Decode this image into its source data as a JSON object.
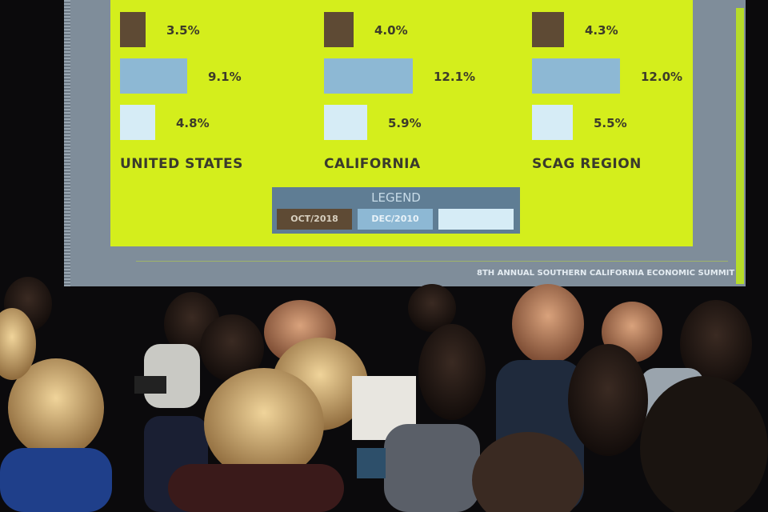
{
  "slide": {
    "groups": [
      {
        "region": "UNITED STATES",
        "values": [
          "3.5%",
          "9.1%",
          "4.8%"
        ],
        "nums": [
          3.5,
          9.1,
          4.8
        ]
      },
      {
        "region": "CALIFORNIA",
        "values": [
          "4.0%",
          "12.1%",
          "5.9%"
        ],
        "nums": [
          4.0,
          12.1,
          5.9
        ]
      },
      {
        "region": "SCAG REGION",
        "values": [
          "4.3%",
          "12.0%",
          "5.5%"
        ],
        "nums": [
          4.3,
          12.0,
          5.5
        ]
      }
    ],
    "legend": {
      "title": "LEGEND",
      "items": [
        {
          "label": "OCT/2018",
          "color": "#5e4a34"
        },
        {
          "label": "DEC/2010",
          "color": "#8db8d4"
        },
        {
          "label": "",
          "color": "#d6ecf6"
        }
      ]
    },
    "footer": "8TH ANNUAL SOUTHERN CALIFORNIA ECONOMIC SUMMIT",
    "background_color": "#d4ee1c"
  }
}
